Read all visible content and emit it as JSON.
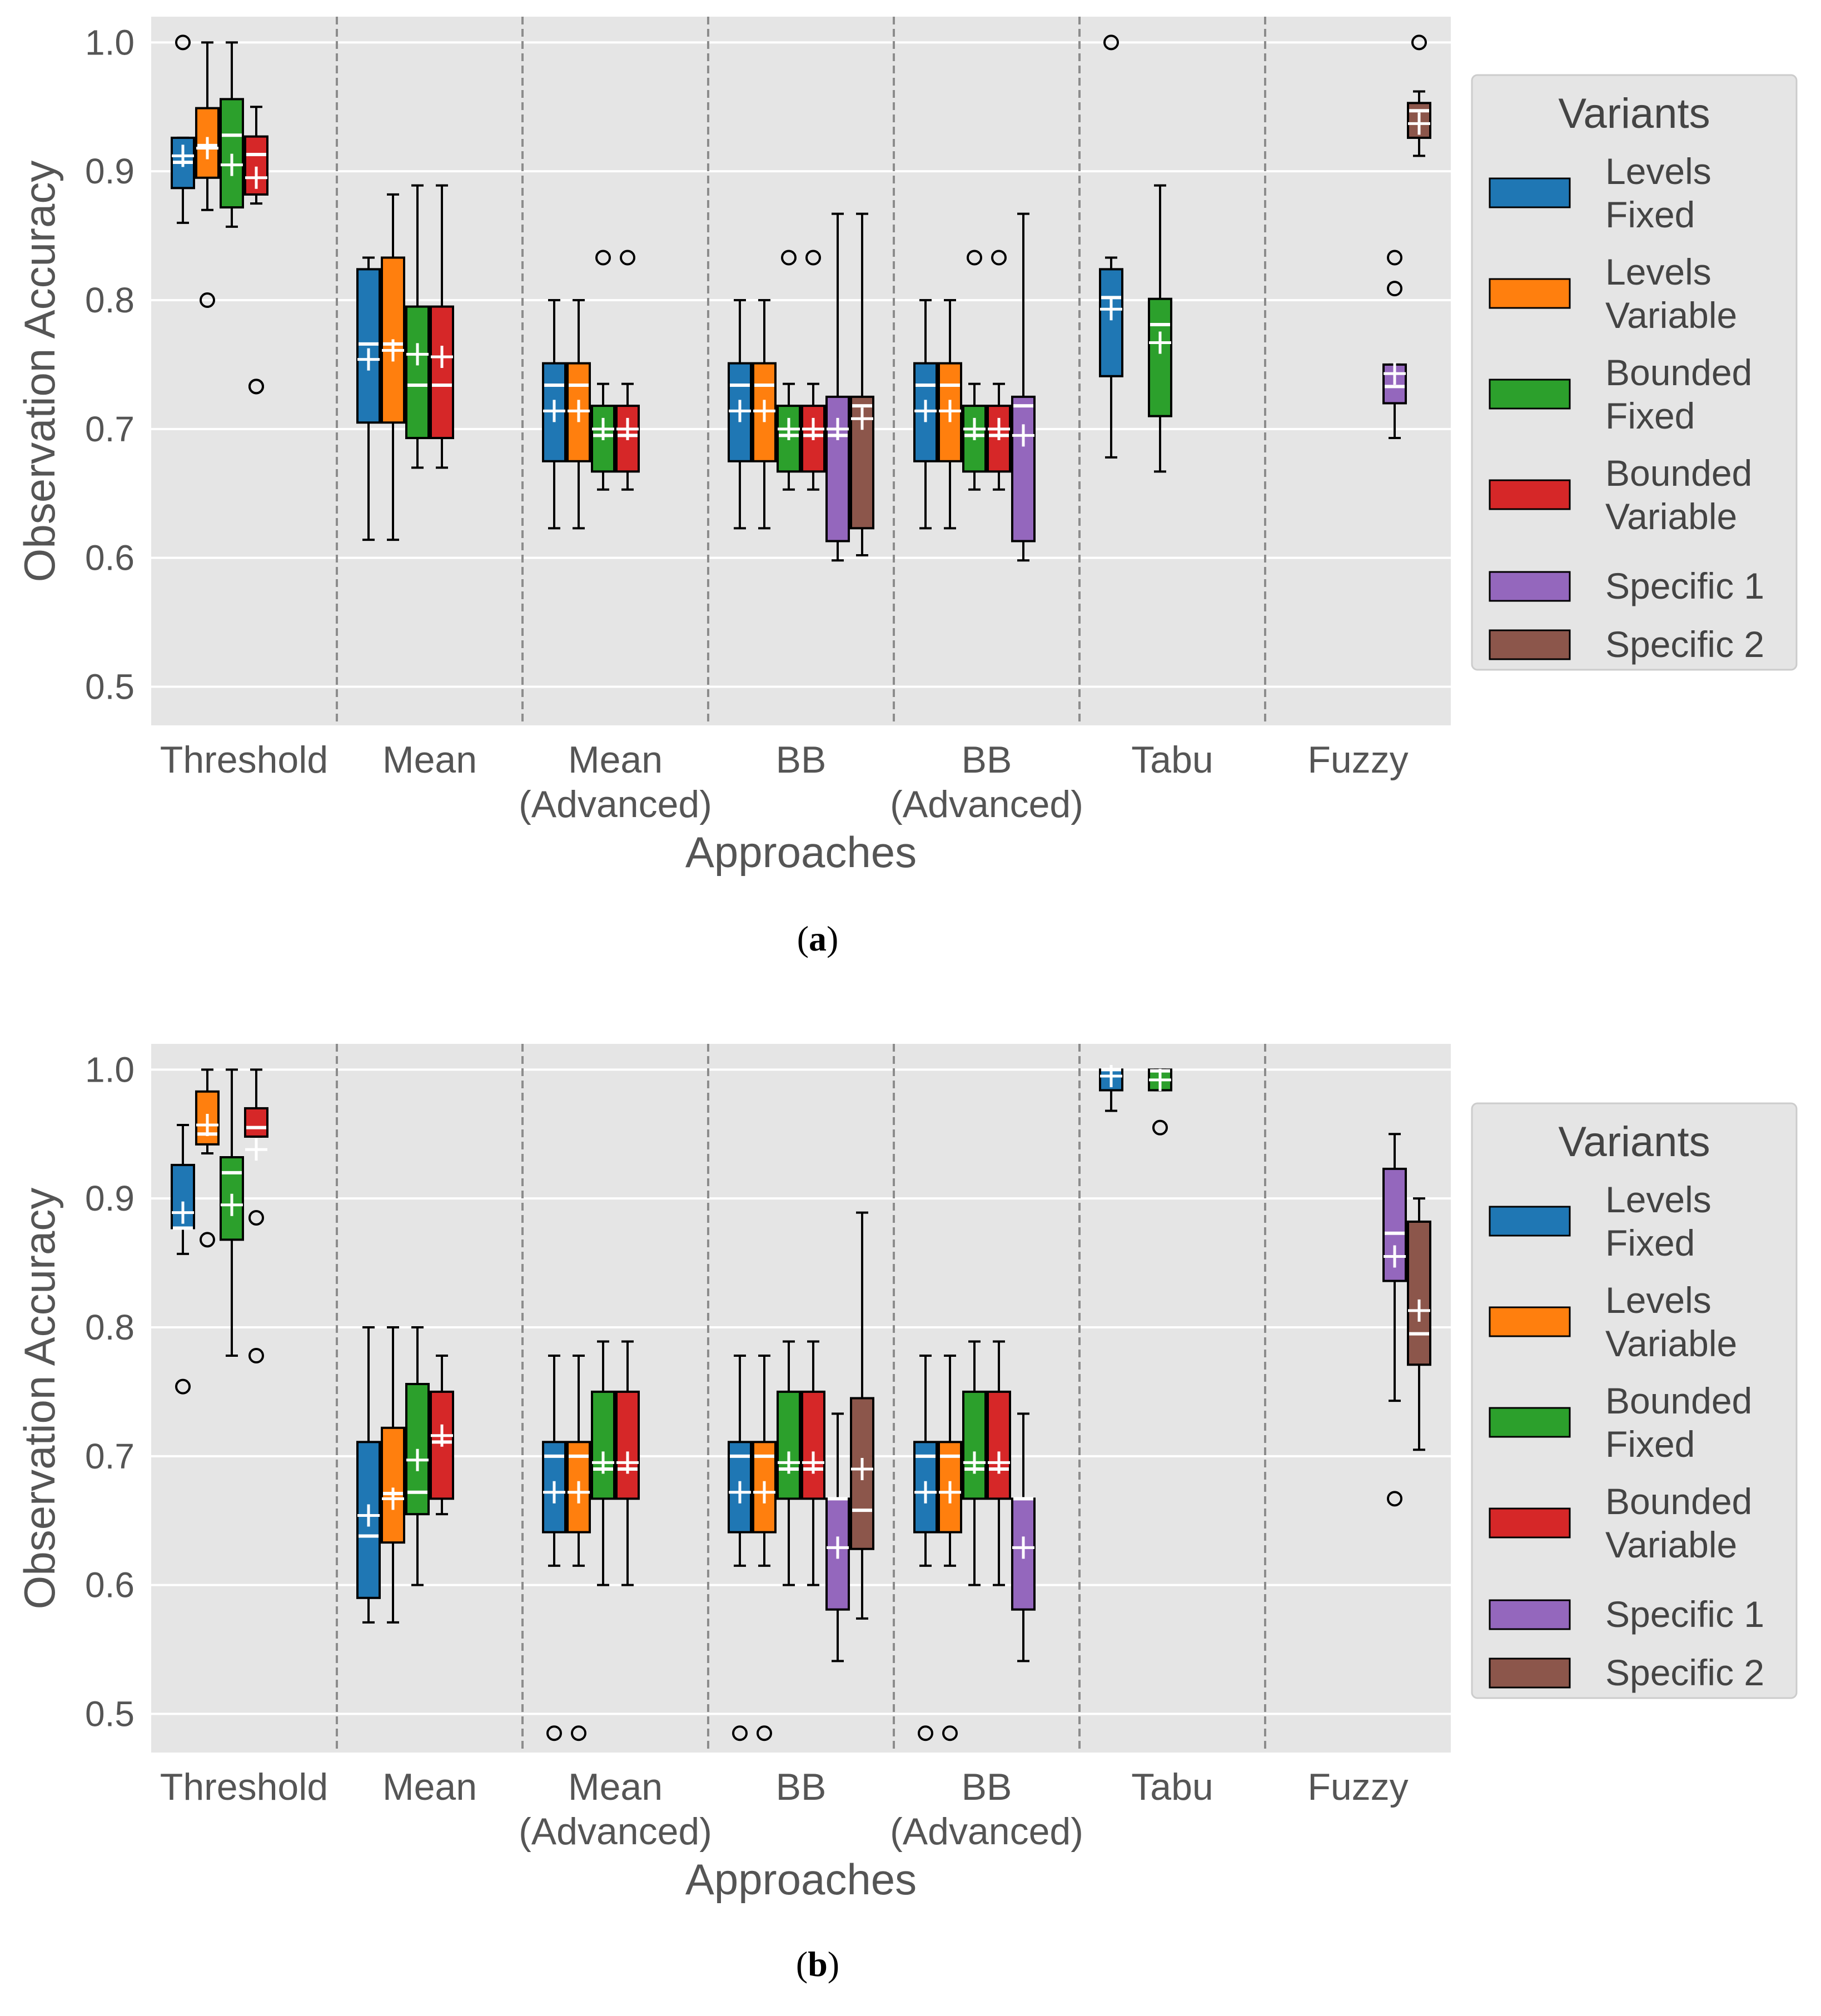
{
  "colors": {
    "Levels Fixed": "#1f77b4",
    "Levels Variable": "#ff7f0e",
    "Bounded Fixed": "#2ca02c",
    "Bounded Variable": "#d62728",
    "Specific 1": "#9467bd",
    "Specific 2": "#8c564b"
  },
  "legend": {
    "title": "Variants",
    "entries": [
      {
        "key": "Levels Fixed",
        "lines": [
          "Levels",
          "Fixed"
        ]
      },
      {
        "key": "Levels Variable",
        "lines": [
          "Levels",
          "Variable"
        ]
      },
      {
        "key": "Bounded Fixed",
        "lines": [
          "Bounded",
          "Fixed"
        ]
      },
      {
        "key": "Bounded Variable",
        "lines": [
          "Bounded",
          "Variable"
        ]
      },
      {
        "key": "Specific 1",
        "lines": [
          "Specific 1"
        ]
      },
      {
        "key": "Specific 2",
        "lines": [
          "Specific 2"
        ]
      }
    ]
  },
  "chart_data": [
    {
      "type": "box",
      "caption": "a",
      "xlabel": "Approaches",
      "ylabel": "Observation Accuracy",
      "ylim": [
        0.47,
        1.02
      ],
      "yticks": [
        0.5,
        0.6,
        0.7,
        0.8,
        0.9,
        1.0
      ],
      "ytick_labels": [
        "0.5",
        "0.6",
        "0.7",
        "0.8",
        "0.9",
        "1.0"
      ],
      "categories": [
        [
          "Threshold"
        ],
        [
          "Mean"
        ],
        [
          "Mean",
          "(Advanced)"
        ],
        [
          "BB"
        ],
        [
          "BB",
          "(Advanced)"
        ],
        [
          "Tabu"
        ],
        [
          "Fuzzy"
        ]
      ],
      "boxes": [
        {
          "group": 0,
          "slot": 0,
          "variant": "Levels Fixed",
          "whislo": 0.86,
          "q1": 0.887,
          "med": 0.907,
          "q3": 0.926,
          "whishi": 0.926,
          "mean": 0.912,
          "fliers": [
            1.0
          ]
        },
        {
          "group": 0,
          "slot": 1,
          "variant": "Levels Variable",
          "whislo": 0.87,
          "q1": 0.895,
          "med": 0.92,
          "q3": 0.949,
          "whishi": 1.0,
          "mean": 0.918,
          "fliers": [
            0.8
          ]
        },
        {
          "group": 0,
          "slot": 2,
          "variant": "Bounded Fixed",
          "whislo": 0.857,
          "q1": 0.872,
          "med": 0.928,
          "q3": 0.956,
          "whishi": 1.0,
          "mean": 0.905,
          "fliers": []
        },
        {
          "group": 0,
          "slot": 3,
          "variant": "Bounded Variable",
          "whislo": 0.875,
          "q1": 0.882,
          "med": 0.913,
          "q3": 0.927,
          "whishi": 0.95,
          "mean": 0.895,
          "fliers": [
            0.733,
            0.733
          ]
        },
        {
          "group": 1,
          "slot": 0,
          "variant": "Levels Fixed",
          "whislo": 0.614,
          "q1": 0.705,
          "med": 0.766,
          "q3": 0.824,
          "whishi": 0.833,
          "mean": 0.754,
          "fliers": []
        },
        {
          "group": 1,
          "slot": 1,
          "variant": "Levels Variable",
          "whislo": 0.614,
          "q1": 0.705,
          "med": 0.766,
          "q3": 0.833,
          "whishi": 0.882,
          "mean": 0.761,
          "fliers": []
        },
        {
          "group": 1,
          "slot": 2,
          "variant": "Bounded Fixed",
          "whislo": 0.67,
          "q1": 0.693,
          "med": 0.734,
          "q3": 0.795,
          "whishi": 0.889,
          "mean": 0.758,
          "fliers": []
        },
        {
          "group": 1,
          "slot": 3,
          "variant": "Bounded Variable",
          "whislo": 0.67,
          "q1": 0.693,
          "med": 0.734,
          "q3": 0.795,
          "whishi": 0.889,
          "mean": 0.756,
          "fliers": []
        },
        {
          "group": 2,
          "slot": 0,
          "variant": "Levels Fixed",
          "whislo": 0.623,
          "q1": 0.675,
          "med": 0.734,
          "q3": 0.751,
          "whishi": 0.8,
          "mean": 0.714,
          "fliers": []
        },
        {
          "group": 2,
          "slot": 1,
          "variant": "Levels Variable",
          "whislo": 0.623,
          "q1": 0.675,
          "med": 0.734,
          "q3": 0.751,
          "whishi": 0.8,
          "mean": 0.714,
          "fliers": []
        },
        {
          "group": 2,
          "slot": 2,
          "variant": "Bounded Fixed",
          "whislo": 0.653,
          "q1": 0.667,
          "med": 0.695,
          "q3": 0.718,
          "whishi": 0.735,
          "mean": 0.7,
          "fliers": [
            0.833
          ]
        },
        {
          "group": 2,
          "slot": 3,
          "variant": "Bounded Variable",
          "whislo": 0.653,
          "q1": 0.667,
          "med": 0.695,
          "q3": 0.718,
          "whishi": 0.735,
          "mean": 0.7,
          "fliers": [
            0.833
          ]
        },
        {
          "group": 3,
          "slot": 0,
          "variant": "Levels Fixed",
          "whislo": 0.623,
          "q1": 0.675,
          "med": 0.734,
          "q3": 0.751,
          "whishi": 0.8,
          "mean": 0.714,
          "fliers": []
        },
        {
          "group": 3,
          "slot": 1,
          "variant": "Levels Variable",
          "whislo": 0.623,
          "q1": 0.675,
          "med": 0.734,
          "q3": 0.751,
          "whishi": 0.8,
          "mean": 0.714,
          "fliers": []
        },
        {
          "group": 3,
          "slot": 2,
          "variant": "Bounded Fixed",
          "whislo": 0.653,
          "q1": 0.667,
          "med": 0.695,
          "q3": 0.718,
          "whishi": 0.735,
          "mean": 0.7,
          "fliers": [
            0.833
          ]
        },
        {
          "group": 3,
          "slot": 3,
          "variant": "Bounded Variable",
          "whislo": 0.653,
          "q1": 0.667,
          "med": 0.695,
          "q3": 0.718,
          "whishi": 0.735,
          "mean": 0.7,
          "fliers": [
            0.833
          ]
        },
        {
          "group": 3,
          "slot": 4,
          "variant": "Specific 1",
          "whislo": 0.598,
          "q1": 0.613,
          "med": 0.695,
          "q3": 0.725,
          "whishi": 0.867,
          "mean": 0.7,
          "fliers": []
        },
        {
          "group": 3,
          "slot": 5,
          "variant": "Specific 2",
          "whislo": 0.602,
          "q1": 0.623,
          "med": 0.718,
          "q3": 0.725,
          "whishi": 0.867,
          "mean": 0.708,
          "fliers": []
        },
        {
          "group": 4,
          "slot": 0,
          "variant": "Levels Fixed",
          "whislo": 0.623,
          "q1": 0.675,
          "med": 0.734,
          "q3": 0.751,
          "whishi": 0.8,
          "mean": 0.714,
          "fliers": []
        },
        {
          "group": 4,
          "slot": 1,
          "variant": "Levels Variable",
          "whislo": 0.623,
          "q1": 0.675,
          "med": 0.734,
          "q3": 0.751,
          "whishi": 0.8,
          "mean": 0.714,
          "fliers": []
        },
        {
          "group": 4,
          "slot": 2,
          "variant": "Bounded Fixed",
          "whislo": 0.653,
          "q1": 0.667,
          "med": 0.695,
          "q3": 0.718,
          "whishi": 0.735,
          "mean": 0.7,
          "fliers": [
            0.833
          ]
        },
        {
          "group": 4,
          "slot": 3,
          "variant": "Bounded Variable",
          "whislo": 0.653,
          "q1": 0.667,
          "med": 0.695,
          "q3": 0.718,
          "whishi": 0.735,
          "mean": 0.7,
          "fliers": [
            0.833
          ]
        },
        {
          "group": 4,
          "slot": 4,
          "variant": "Specific 1",
          "whislo": 0.598,
          "q1": 0.613,
          "med": 0.718,
          "q3": 0.725,
          "whishi": 0.867,
          "mean": 0.695,
          "fliers": []
        },
        {
          "group": 5,
          "slot": 0,
          "variant": "Levels Fixed",
          "whislo": 0.678,
          "q1": 0.741,
          "med": 0.802,
          "q3": 0.824,
          "whishi": 0.833,
          "mean": 0.793,
          "fliers": [
            1.0
          ]
        },
        {
          "group": 5,
          "slot": 2,
          "variant": "Bounded Fixed",
          "whislo": 0.667,
          "q1": 0.71,
          "med": 0.781,
          "q3": 0.801,
          "whishi": 0.889,
          "mean": 0.767,
          "fliers": []
        },
        {
          "group": 6,
          "slot": 4,
          "variant": "Specific 1",
          "whislo": 0.693,
          "q1": 0.72,
          "med": 0.733,
          "q3": 0.75,
          "whishi": 0.75,
          "mean": 0.743,
          "fliers": [
            0.809,
            0.833
          ]
        },
        {
          "group": 6,
          "slot": 5,
          "variant": "Specific 2",
          "whislo": 0.912,
          "q1": 0.926,
          "med": 0.947,
          "q3": 0.953,
          "whishi": 0.962,
          "mean": 0.937,
          "fliers": [
            1.0
          ]
        }
      ]
    },
    {
      "type": "box",
      "caption": "b",
      "xlabel": "Approaches",
      "ylabel": "Observation Accuracy",
      "ylim": [
        0.47,
        1.02
      ],
      "yticks": [
        0.5,
        0.6,
        0.7,
        0.8,
        0.9,
        1.0
      ],
      "ytick_labels": [
        "0.5",
        "0.6",
        "0.7",
        "0.8",
        "0.9",
        "1.0"
      ],
      "categories": [
        [
          "Threshold"
        ],
        [
          "Mean"
        ],
        [
          "Mean",
          "(Advanced)"
        ],
        [
          "BB"
        ],
        [
          "BB",
          "(Advanced)"
        ],
        [
          "Tabu"
        ],
        [
          "Fuzzy"
        ]
      ],
      "boxes": [
        {
          "group": 0,
          "slot": 0,
          "variant": "Levels Fixed",
          "whislo": 0.857,
          "q1": 0.877,
          "med": 0.877,
          "q3": 0.926,
          "whishi": 0.957,
          "mean": 0.889,
          "fliers": [
            0.754
          ]
        },
        {
          "group": 0,
          "slot": 1,
          "variant": "Levels Variable",
          "whislo": 0.935,
          "q1": 0.942,
          "med": 0.95,
          "q3": 0.983,
          "whishi": 1.0,
          "mean": 0.957,
          "fliers": [
            0.868
          ]
        },
        {
          "group": 0,
          "slot": 2,
          "variant": "Bounded Fixed",
          "whislo": 0.778,
          "q1": 0.868,
          "med": 0.92,
          "q3": 0.932,
          "whishi": 1.0,
          "mean": 0.895,
          "fliers": []
        },
        {
          "group": 0,
          "slot": 3,
          "variant": "Bounded Variable",
          "whislo": 0.948,
          "q1": 0.948,
          "med": 0.955,
          "q3": 0.97,
          "whishi": 1.0,
          "mean": 0.938,
          "fliers": [
            0.885,
            0.778
          ]
        },
        {
          "group": 1,
          "slot": 0,
          "variant": "Levels Fixed",
          "whislo": 0.571,
          "q1": 0.59,
          "med": 0.638,
          "q3": 0.711,
          "whishi": 0.8,
          "mean": 0.654,
          "fliers": []
        },
        {
          "group": 1,
          "slot": 1,
          "variant": "Levels Variable",
          "whislo": 0.571,
          "q1": 0.633,
          "med": 0.671,
          "q3": 0.722,
          "whishi": 0.8,
          "mean": 0.667,
          "fliers": []
        },
        {
          "group": 1,
          "slot": 2,
          "variant": "Bounded Fixed",
          "whislo": 0.6,
          "q1": 0.655,
          "med": 0.672,
          "q3": 0.756,
          "whishi": 0.8,
          "mean": 0.697,
          "fliers": []
        },
        {
          "group": 1,
          "slot": 3,
          "variant": "Bounded Variable",
          "whislo": 0.655,
          "q1": 0.667,
          "med": 0.711,
          "q3": 0.75,
          "whishi": 0.778,
          "mean": 0.716,
          "fliers": []
        },
        {
          "group": 2,
          "slot": 0,
          "variant": "Levels Fixed",
          "whislo": 0.615,
          "q1": 0.641,
          "med": 0.7,
          "q3": 0.711,
          "whishi": 0.778,
          "mean": 0.672,
          "fliers": [
            0.485
          ]
        },
        {
          "group": 2,
          "slot": 1,
          "variant": "Levels Variable",
          "whislo": 0.615,
          "q1": 0.641,
          "med": 0.7,
          "q3": 0.711,
          "whishi": 0.778,
          "mean": 0.672,
          "fliers": [
            0.485
          ]
        },
        {
          "group": 2,
          "slot": 2,
          "variant": "Bounded Fixed",
          "whislo": 0.6,
          "q1": 0.667,
          "med": 0.69,
          "q3": 0.75,
          "whishi": 0.789,
          "mean": 0.695,
          "fliers": []
        },
        {
          "group": 2,
          "slot": 3,
          "variant": "Bounded Variable",
          "whislo": 0.6,
          "q1": 0.667,
          "med": 0.69,
          "q3": 0.75,
          "whishi": 0.789,
          "mean": 0.695,
          "fliers": []
        },
        {
          "group": 3,
          "slot": 0,
          "variant": "Levels Fixed",
          "whislo": 0.615,
          "q1": 0.641,
          "med": 0.7,
          "q3": 0.711,
          "whishi": 0.778,
          "mean": 0.672,
          "fliers": [
            0.485
          ]
        },
        {
          "group": 3,
          "slot": 1,
          "variant": "Levels Variable",
          "whislo": 0.615,
          "q1": 0.641,
          "med": 0.7,
          "q3": 0.711,
          "whishi": 0.778,
          "mean": 0.672,
          "fliers": [
            0.485
          ]
        },
        {
          "group": 3,
          "slot": 2,
          "variant": "Bounded Fixed",
          "whislo": 0.6,
          "q1": 0.667,
          "med": 0.69,
          "q3": 0.75,
          "whishi": 0.789,
          "mean": 0.695,
          "fliers": []
        },
        {
          "group": 3,
          "slot": 3,
          "variant": "Bounded Variable",
          "whislo": 0.6,
          "q1": 0.667,
          "med": 0.69,
          "q3": 0.75,
          "whishi": 0.789,
          "mean": 0.695,
          "fliers": []
        },
        {
          "group": 3,
          "slot": 4,
          "variant": "Specific 1",
          "whislo": 0.541,
          "q1": 0.581,
          "med": 0.667,
          "q3": 0.667,
          "whishi": 0.733,
          "mean": 0.629,
          "fliers": []
        },
        {
          "group": 3,
          "slot": 5,
          "variant": "Specific 2",
          "whislo": 0.574,
          "q1": 0.628,
          "med": 0.658,
          "q3": 0.745,
          "whishi": 0.889,
          "mean": 0.69,
          "fliers": []
        },
        {
          "group": 4,
          "slot": 0,
          "variant": "Levels Fixed",
          "whislo": 0.615,
          "q1": 0.641,
          "med": 0.7,
          "q3": 0.711,
          "whishi": 0.778,
          "mean": 0.672,
          "fliers": [
            0.485
          ]
        },
        {
          "group": 4,
          "slot": 1,
          "variant": "Levels Variable",
          "whislo": 0.615,
          "q1": 0.641,
          "med": 0.7,
          "q3": 0.711,
          "whishi": 0.778,
          "mean": 0.672,
          "fliers": [
            0.485
          ]
        },
        {
          "group": 4,
          "slot": 2,
          "variant": "Bounded Fixed",
          "whislo": 0.6,
          "q1": 0.667,
          "med": 0.69,
          "q3": 0.75,
          "whishi": 0.789,
          "mean": 0.695,
          "fliers": []
        },
        {
          "group": 4,
          "slot": 3,
          "variant": "Bounded Variable",
          "whislo": 0.6,
          "q1": 0.667,
          "med": 0.69,
          "q3": 0.75,
          "whishi": 0.789,
          "mean": 0.695,
          "fliers": []
        },
        {
          "group": 4,
          "slot": 4,
          "variant": "Specific 1",
          "whislo": 0.541,
          "q1": 0.581,
          "med": 0.667,
          "q3": 0.667,
          "whishi": 0.733,
          "mean": 0.629,
          "fliers": []
        },
        {
          "group": 5,
          "slot": 0,
          "variant": "Levels Fixed",
          "whislo": 0.968,
          "q1": 0.984,
          "med": 1.0,
          "q3": 1.0,
          "whishi": 1.0,
          "mean": 0.995,
          "fliers": []
        },
        {
          "group": 5,
          "slot": 2,
          "variant": "Bounded Fixed",
          "whislo": 0.984,
          "q1": 0.984,
          "med": 0.999,
          "q3": 1.0,
          "whishi": 1.0,
          "mean": 0.992,
          "fliers": [
            0.955
          ]
        },
        {
          "group": 6,
          "slot": 4,
          "variant": "Specific 1",
          "whislo": 0.743,
          "q1": 0.836,
          "med": 0.873,
          "q3": 0.923,
          "whishi": 0.95,
          "mean": 0.855,
          "fliers": [
            0.667
          ]
        },
        {
          "group": 6,
          "slot": 5,
          "variant": "Specific 2",
          "whislo": 0.705,
          "q1": 0.771,
          "med": 0.795,
          "q3": 0.882,
          "whishi": 0.9,
          "mean": 0.813,
          "fliers": []
        }
      ]
    }
  ]
}
